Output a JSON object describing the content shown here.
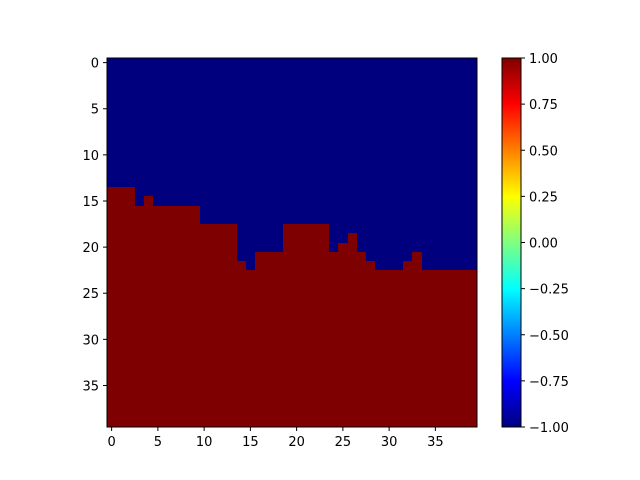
{
  "chart_data": {
    "type": "heatmap",
    "title": "",
    "xlabel": "",
    "ylabel": "",
    "grid": false,
    "colormap": "jet",
    "rows": 40,
    "cols": 40,
    "xlim": [
      -0.5,
      39.5
    ],
    "ylim": [
      39.5,
      -0.5
    ],
    "y_axis_inverted": true,
    "x_ticks": [
      0,
      5,
      10,
      15,
      20,
      25,
      30,
      35
    ],
    "x_tick_labels": [
      "0",
      "5",
      "10",
      "15",
      "20",
      "25",
      "30",
      "35"
    ],
    "y_ticks": [
      0,
      5,
      10,
      15,
      20,
      25,
      30,
      35
    ],
    "y_tick_labels": [
      "0",
      "5",
      "10",
      "15",
      "20",
      "25",
      "30",
      "35"
    ],
    "value_low": -1,
    "value_high": 1,
    "low_color": "#00007f",
    "high_color": "#7f0000",
    "boundary_description": "For each column, rows at or below the boundary row have value 1.00; rows above it have value -1.00",
    "boundary_first_high_row_per_column": [
      14,
      14,
      14,
      16,
      15,
      16,
      16,
      16,
      16,
      16,
      18,
      18,
      18,
      18,
      22,
      23,
      21,
      21,
      21,
      18,
      18,
      18,
      18,
      18,
      21,
      20,
      19,
      21,
      22,
      23,
      23,
      23,
      22,
      21,
      23,
      23,
      23,
      23,
      23,
      23
    ],
    "colorbar": {
      "min": -1.0,
      "max": 1.0,
      "ticks": [
        -1.0,
        -0.75,
        -0.5,
        -0.25,
        0.0,
        0.25,
        0.5,
        0.75,
        1.0
      ],
      "tick_labels": [
        "−1.00",
        "−0.75",
        "−0.50",
        "−0.25",
        "0.00",
        "0.25",
        "0.50",
        "0.75",
        "1.00"
      ]
    }
  }
}
